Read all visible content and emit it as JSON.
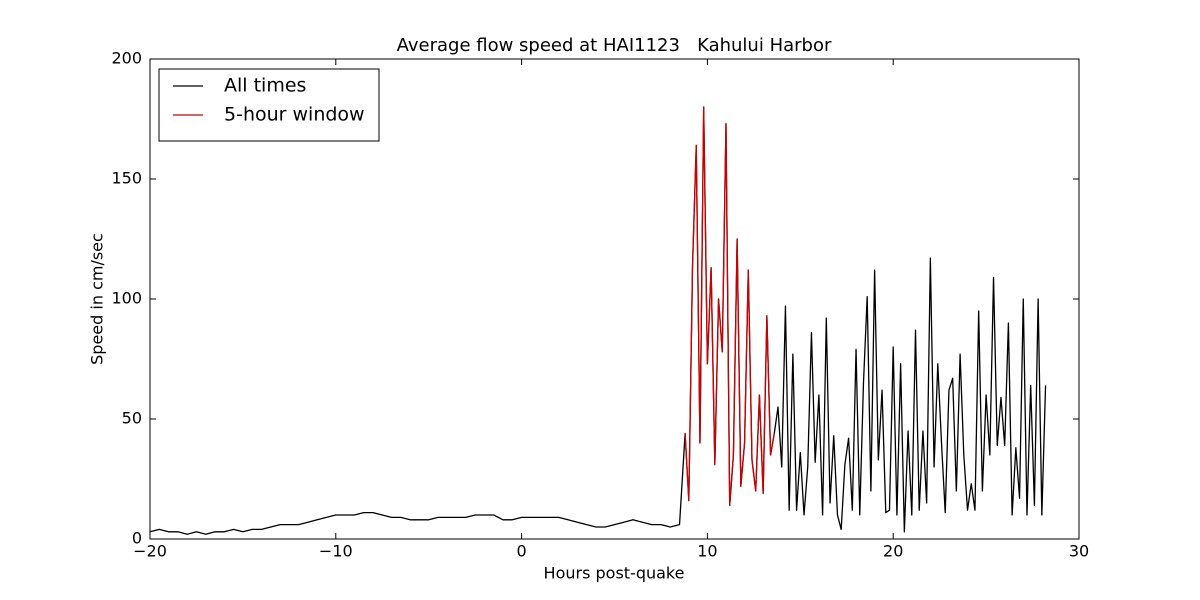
{
  "chart_data": {
    "type": "line",
    "title": "Average flow speed at HAI1123   Kahului Harbor",
    "x_label": "Hours post-quake",
    "y_label": "Speed in cm/sec",
    "xlim": [
      -20,
      30
    ],
    "xticks": [
      {
        "value": -20,
        "label": "−20"
      },
      {
        "value": -10,
        "label": "−10"
      },
      0,
      10,
      20,
      30
    ],
    "ylim": [
      0,
      200
    ],
    "yticks": [
      0,
      50,
      100,
      150,
      200
    ],
    "legend": "upper left",
    "series": [
      {
        "name": "All times",
        "color": "#000000",
        "x": [
          -20,
          -19.5,
          -19,
          -18.5,
          -18,
          -17.5,
          -17,
          -16.5,
          -16,
          -15.5,
          -15,
          -14.5,
          -14,
          -13.5,
          -13,
          -12.5,
          -12,
          -11.5,
          -11,
          -10.5,
          -10,
          -9.5,
          -9,
          -8.5,
          -8,
          -7.5,
          -7,
          -6.5,
          -6,
          -5.5,
          -5,
          -4.5,
          -4,
          -3.5,
          -3,
          -2.5,
          -2,
          -1.5,
          -1,
          -0.5,
          0,
          0.5,
          1,
          1.5,
          2,
          2.5,
          3,
          3.5,
          4,
          4.5,
          5,
          5.5,
          6,
          6.5,
          7,
          7.5,
          8,
          8.5,
          8.8,
          9,
          9.2,
          9.4,
          9.6,
          9.8,
          10,
          10.2,
          10.4,
          10.6,
          10.8,
          11,
          11.2,
          11.4,
          11.6,
          11.8,
          12,
          12.2,
          12.4,
          12.6,
          12.8,
          13,
          13.2,
          13.4,
          13.6,
          13.8,
          14,
          14.2,
          14.4,
          14.6,
          14.8,
          15,
          15.2,
          15.4,
          15.6,
          15.8,
          16,
          16.2,
          16.4,
          16.6,
          16.8,
          17,
          17.2,
          17.4,
          17.6,
          17.8,
          18,
          18.2,
          18.4,
          18.6,
          18.8,
          19,
          19.2,
          19.4,
          19.6,
          19.8,
          20,
          20.2,
          20.4,
          20.6,
          20.8,
          21,
          21.2,
          21.4,
          21.6,
          21.8,
          22,
          22.2,
          22.4,
          22.6,
          22.8,
          23,
          23.2,
          23.4,
          23.6,
          23.8,
          24,
          24.2,
          24.4,
          24.6,
          24.8,
          25,
          25.2,
          25.4,
          25.6,
          25.8,
          26,
          26.2,
          26.4,
          26.6,
          26.8,
          27,
          27.2,
          27.4,
          27.6,
          27.8,
          28,
          28.2
        ],
        "values": [
          3,
          4,
          3,
          3,
          2,
          3,
          2,
          3,
          3,
          4,
          3,
          4,
          4,
          5,
          6,
          6,
          6,
          7,
          8,
          9,
          10,
          10,
          10,
          11,
          11,
          10,
          9,
          9,
          8,
          8,
          8,
          9,
          9,
          9,
          9,
          10,
          10,
          10,
          8,
          8,
          9,
          9,
          9,
          9,
          9,
          8,
          7,
          6,
          5,
          5,
          6,
          7,
          8,
          7,
          6,
          6,
          5,
          6,
          44,
          16,
          114,
          164,
          40,
          180,
          73,
          113,
          31,
          100,
          78,
          173,
          14,
          35,
          125,
          22,
          40,
          112,
          33,
          20,
          60,
          19,
          93,
          35,
          44,
          55,
          30,
          97,
          12,
          77,
          12,
          36,
          10,
          30,
          86,
          32,
          60,
          10,
          92,
          15,
          43,
          10,
          4,
          31,
          42,
          12,
          79,
          10,
          65,
          101,
          20,
          112,
          33,
          62,
          11,
          12,
          80,
          10,
          73,
          3,
          45,
          10,
          87,
          12,
          45,
          15,
          117,
          30,
          73,
          40,
          11,
          62,
          67,
          20,
          77,
          35,
          12,
          23,
          12,
          95,
          20,
          60,
          35,
          109,
          39,
          59,
          39,
          90,
          10,
          38,
          17,
          100,
          10,
          64,
          14,
          100,
          10,
          64
        ]
      },
      {
        "name": "5-hour window",
        "color": "#cc0000",
        "x": [
          8.8,
          9,
          9.2,
          9.4,
          9.6,
          9.8,
          10,
          10.2,
          10.4,
          10.6,
          10.8,
          11,
          11.2,
          11.4,
          11.6,
          11.8,
          12,
          12.2,
          12.4,
          12.6,
          12.8,
          13,
          13.2,
          13.4,
          13.6
        ],
        "values": [
          44,
          16,
          114,
          164,
          40,
          180,
          73,
          113,
          31,
          100,
          78,
          173,
          14,
          35,
          125,
          22,
          40,
          112,
          33,
          20,
          60,
          19,
          93,
          35,
          44
        ]
      }
    ]
  }
}
